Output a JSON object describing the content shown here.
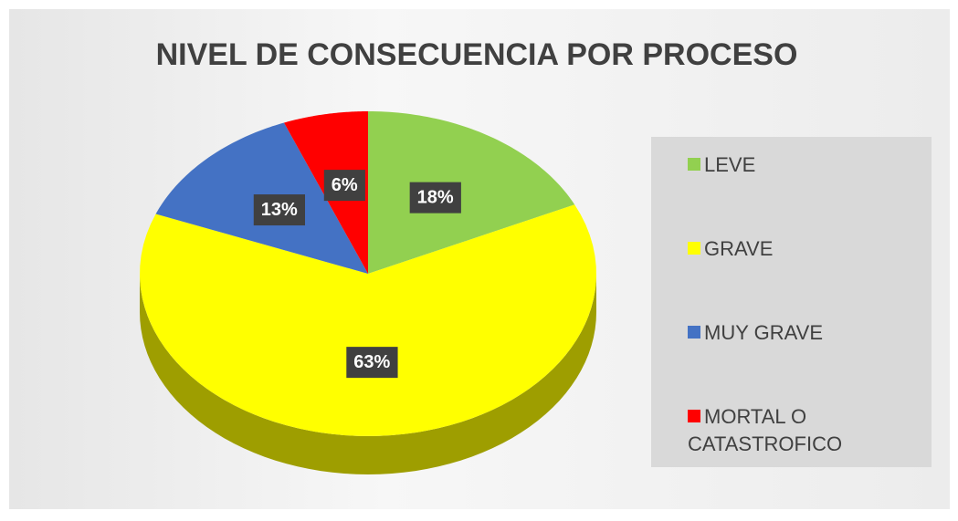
{
  "chart_data": {
    "type": "pie",
    "title": "NIVEL DE CONSECUENCIA POR PROCESO",
    "categories": [
      "LEVE",
      "GRAVE",
      "MUY GRAVE",
      "MORTAL O CATASTROFICO"
    ],
    "values": [
      18,
      63,
      13,
      6
    ],
    "value_labels": [
      "18%",
      "63%",
      "13%",
      "6%"
    ],
    "colors": [
      "#92d050",
      "#ffff00",
      "#4472c4",
      "#ff0000"
    ],
    "legend": "right"
  }
}
